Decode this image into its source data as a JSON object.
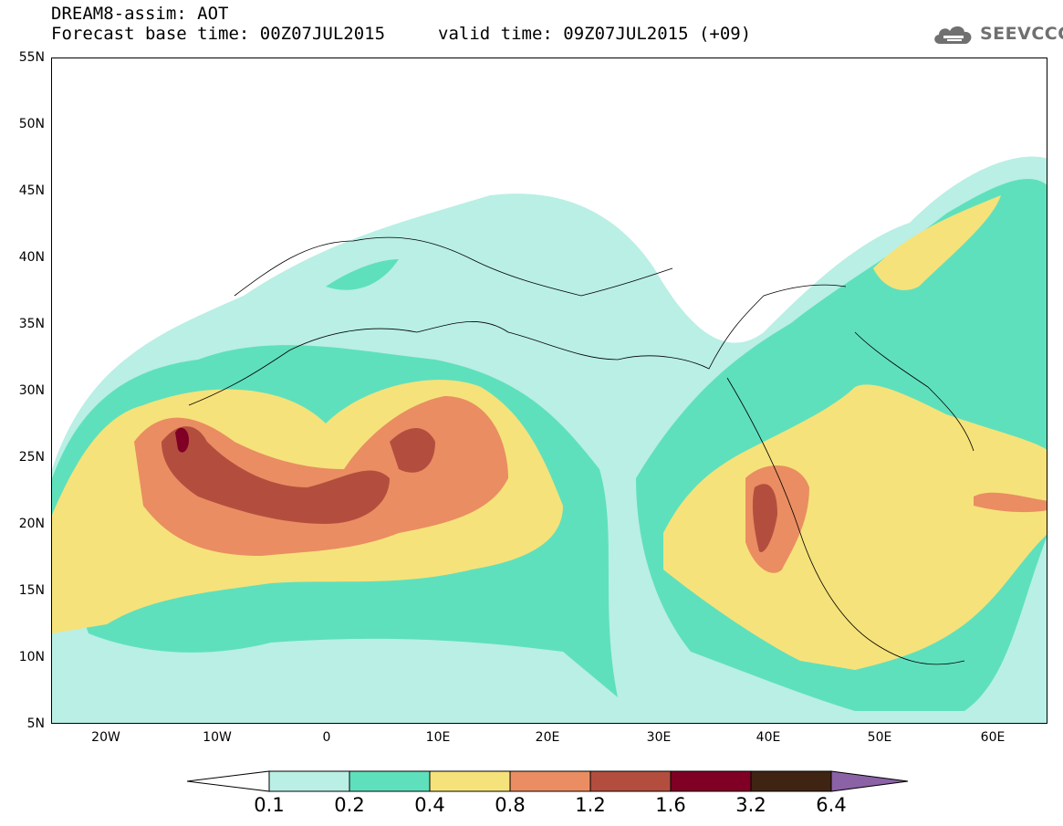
{
  "header": {
    "title": "DREAM8-assim: AOT",
    "base_time": "Forecast base time: 00Z07JUL2015",
    "valid_time": "valid time: 09Z07JUL2015 (+09)"
  },
  "logo": {
    "text": "SEEVCCC",
    "icon": "cloud-icon"
  },
  "axes": {
    "lat_labels": [
      "55N",
      "50N",
      "45N",
      "40N",
      "35N",
      "30N",
      "25N",
      "20N",
      "15N",
      "10N",
      "5N"
    ],
    "lon_labels": [
      "20W",
      "10W",
      "0",
      "10E",
      "20E",
      "30E",
      "40E",
      "50E",
      "60E"
    ]
  },
  "colorbar": {
    "labels": [
      "0.1",
      "0.2",
      "0.4",
      "0.8",
      "1.2",
      "1.6",
      "3.2",
      "6.4"
    ],
    "colors": [
      "#b9efe5",
      "#5fe0bc",
      "#f6e27a",
      "#ea8d62",
      "#b34e3f",
      "#800025",
      "#3f2414",
      "#8c62a6"
    ]
  }
}
